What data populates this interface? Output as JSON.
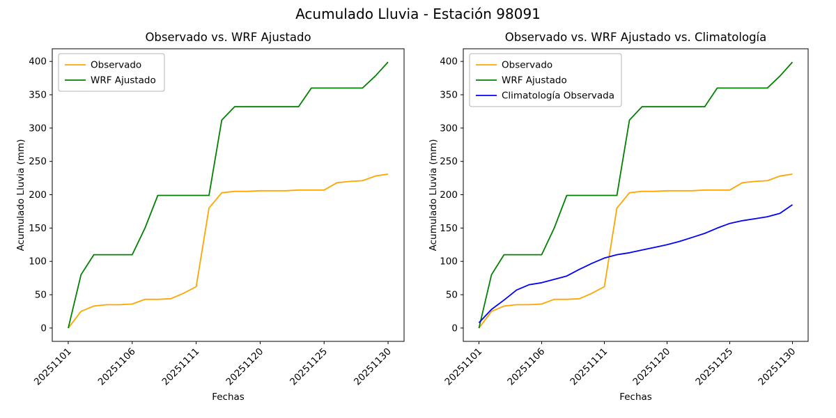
{
  "figure": {
    "title": "Acumulado Lluvia - Estación 98091"
  },
  "chart_data": [
    {
      "type": "line",
      "title": "Observado vs. WRF Ajustado",
      "xlabel": "Fechas",
      "ylabel": "Acumulado Lluvia (mm)",
      "grid": false,
      "legend_position": "upper left",
      "x_labels": [
        "20251101",
        "20251106",
        "20251111",
        "20251120",
        "20251125",
        "20251130"
      ],
      "x_tick_indices": [
        0,
        5,
        10,
        15,
        20,
        25
      ],
      "yticks": [
        0,
        50,
        100,
        150,
        200,
        250,
        300,
        350,
        400
      ],
      "xlim": [
        -1.25,
        26.25
      ],
      "ylim": [
        -20,
        419
      ],
      "series": [
        {
          "name": "Observado",
          "color": "#ffa500",
          "values": [
            0,
            25,
            33,
            35,
            35,
            36,
            43,
            43,
            44,
            52,
            62,
            180,
            203,
            205,
            205,
            206,
            206,
            206,
            207,
            207,
            207,
            218,
            220,
            221,
            228,
            231
          ]
        },
        {
          "name": "WRF Ajustado",
          "color": "#008000",
          "values": [
            0,
            80,
            110,
            110,
            110,
            110,
            150,
            199,
            199,
            199,
            199,
            199,
            312,
            332,
            332,
            332,
            332,
            332,
            332,
            360,
            360,
            360,
            360,
            360,
            378,
            399
          ]
        }
      ]
    },
    {
      "type": "line",
      "title": "Observado vs. WRF Ajustado vs. Climatología",
      "xlabel": "Fechas",
      "ylabel": "Acumulado Lluvia (mm)",
      "grid": false,
      "legend_position": "upper left",
      "x_labels": [
        "20251101",
        "20251106",
        "20251111",
        "20251120",
        "20251125",
        "20251130"
      ],
      "x_tick_indices": [
        0,
        5,
        10,
        15,
        20,
        25
      ],
      "yticks": [
        0,
        50,
        100,
        150,
        200,
        250,
        300,
        350,
        400
      ],
      "xlim": [
        -1.25,
        26.25
      ],
      "ylim": [
        -20,
        419
      ],
      "series": [
        {
          "name": "Observado",
          "color": "#ffa500",
          "values": [
            0,
            25,
            33,
            35,
            35,
            36,
            43,
            43,
            44,
            52,
            62,
            180,
            203,
            205,
            205,
            206,
            206,
            206,
            207,
            207,
            207,
            218,
            220,
            221,
            228,
            231
          ]
        },
        {
          "name": "WRF Ajustado",
          "color": "#008000",
          "values": [
            0,
            80,
            110,
            110,
            110,
            110,
            150,
            199,
            199,
            199,
            199,
            199,
            312,
            332,
            332,
            332,
            332,
            332,
            332,
            360,
            360,
            360,
            360,
            360,
            378,
            399
          ]
        },
        {
          "name": "Climatología Observada",
          "color": "#0000ff",
          "values": [
            8,
            28,
            42,
            57,
            65,
            68,
            73,
            78,
            88,
            97,
            105,
            110,
            113,
            117,
            121,
            125,
            130,
            136,
            142,
            150,
            157,
            161,
            164,
            167,
            172,
            185
          ]
        }
      ]
    }
  ]
}
